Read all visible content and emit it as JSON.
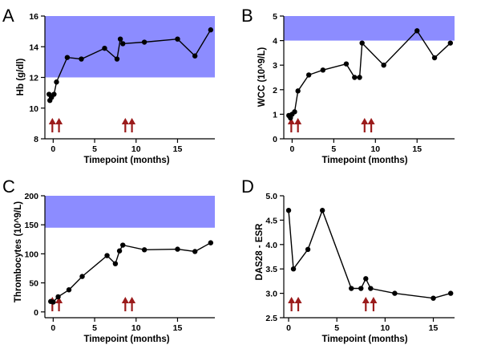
{
  "figure": {
    "colors": {
      "normal_band": "#8c8cff",
      "line": "#000000",
      "marker": "#000000",
      "arrow": "#9b1b1b"
    }
  },
  "chart_data": [
    {
      "panel": "A",
      "type": "line",
      "xlabel": "Timepoint (months)",
      "ylabel": "Hb (g/dl)",
      "xlim": [
        -1,
        19.5
      ],
      "ylim": [
        8,
        16
      ],
      "xticks": [
        0,
        5,
        10,
        15
      ],
      "xtick_labels": [
        "0",
        "5",
        "10",
        "15"
      ],
      "yticks": [
        8,
        10,
        12,
        14,
        16
      ],
      "ytick_labels": [
        "8",
        "10",
        "12",
        "14",
        "16"
      ],
      "normal_range": [
        12,
        16
      ],
      "arrows_at": [
        -0.1,
        0.7,
        8.7,
        9.5
      ],
      "x": [
        -0.5,
        -0.4,
        -0.2,
        0.1,
        0.4,
        1.7,
        3.4,
        6.2,
        7.7,
        8.1,
        8.4,
        11.0,
        15.0,
        17.1,
        19.0
      ],
      "y": [
        10.9,
        10.5,
        10.7,
        10.9,
        11.7,
        13.3,
        13.2,
        13.9,
        13.2,
        14.5,
        14.2,
        14.3,
        14.5,
        13.4,
        15.1
      ]
    },
    {
      "panel": "B",
      "type": "line",
      "xlabel": "Timepoint (months)",
      "ylabel": "WCC (10^9/L)",
      "xlim": [
        -1,
        19.5
      ],
      "ylim": [
        0,
        5
      ],
      "xticks": [
        0,
        5,
        10,
        15
      ],
      "xtick_labels": [
        "0",
        "5",
        "10",
        "15"
      ],
      "yticks": [
        0,
        1,
        2,
        3,
        4,
        5
      ],
      "ytick_labels": [
        "0",
        "1",
        "2",
        "3",
        "4",
        "5"
      ],
      "normal_range": [
        4,
        5
      ],
      "arrows_at": [
        -0.1,
        0.7,
        8.7,
        9.5
      ],
      "x": [
        -0.4,
        -0.2,
        0.0,
        0.3,
        0.7,
        2.0,
        3.7,
        6.5,
        7.5,
        8.1,
        8.4,
        11.0,
        15.0,
        17.1,
        19.0
      ],
      "y": [
        0.95,
        0.85,
        1.0,
        1.1,
        1.95,
        2.6,
        2.8,
        3.05,
        2.5,
        2.5,
        3.9,
        3.0,
        4.4,
        3.3,
        3.9
      ]
    },
    {
      "panel": "C",
      "type": "line",
      "xlabel": "Timepoint (months)",
      "ylabel": "Thrombocytes (10^9/L)",
      "xlim": [
        -1,
        19.5
      ],
      "ylim": [
        -10,
        200
      ],
      "xticks": [
        0,
        5,
        10,
        15
      ],
      "xtick_labels": [
        "0",
        "5",
        "10",
        "15"
      ],
      "yticks": [
        0,
        50,
        100,
        150,
        200
      ],
      "ytick_labels": [
        "0",
        "50",
        "100",
        "150",
        "200"
      ],
      "normal_range": [
        145,
        200
      ],
      "arrows_at": [
        -0.1,
        0.7,
        8.7,
        9.5
      ],
      "x": [
        -0.3,
        0.0,
        0.6,
        1.9,
        3.5,
        6.5,
        7.5,
        8.0,
        8.4,
        11.0,
        15.0,
        17.1,
        19.0
      ],
      "y": [
        18,
        17,
        26,
        38,
        61,
        97,
        83,
        105,
        115,
        107,
        108,
        104,
        119
      ]
    },
    {
      "panel": "D",
      "type": "line",
      "xlabel": "Timepoint (months)",
      "ylabel": "DAS28 - ESR",
      "xlim": [
        -0.5,
        17.2
      ],
      "ylim": [
        2.5,
        5.0
      ],
      "xticks": [
        0,
        5,
        10,
        15
      ],
      "xtick_labels": [
        "0",
        "5",
        "10",
        "15"
      ],
      "yticks": [
        2.5,
        3.0,
        3.5,
        4.0,
        4.5,
        5.0
      ],
      "ytick_labels": [
        "2.5",
        "3.0",
        "3.5",
        "4.0",
        "4.5",
        "5.0"
      ],
      "normal_range": null,
      "arrows_at": [
        0.3,
        1.0,
        8.0,
        8.8
      ],
      "x": [
        0.0,
        0.5,
        2.0,
        3.5,
        6.5,
        7.5,
        8.0,
        8.5,
        11.0,
        15.0,
        16.8
      ],
      "y": [
        4.7,
        3.5,
        3.9,
        4.7,
        3.1,
        3.1,
        3.3,
        3.1,
        3.0,
        2.9,
        3.0
      ]
    }
  ]
}
